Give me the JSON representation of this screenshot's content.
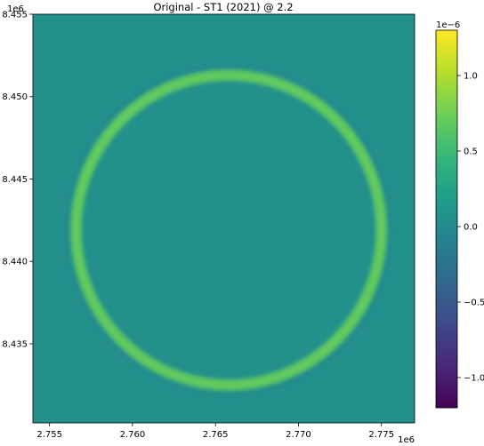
{
  "chart_data": {
    "type": "heatmap",
    "title": "Original - ST1 (2021) @ 2.2",
    "x_offset_label": "1e6",
    "y_offset_label": "1e6",
    "xlim": [
      2.754,
      2.777
    ],
    "ylim": [
      8.4302,
      8.455
    ],
    "x_ticks": [
      "2.755",
      "2.760",
      "2.765",
      "2.770",
      "2.775"
    ],
    "x_tick_values": [
      2.755,
      2.76,
      2.765,
      2.77,
      2.775
    ],
    "y_ticks": [
      "8.455",
      "8.450",
      "8.445",
      "8.440",
      "8.435"
    ],
    "y_tick_values": [
      8.455,
      8.45,
      8.445,
      8.44,
      8.435
    ],
    "colormap": "viridis",
    "grid": false,
    "colorbar": {
      "range": [
        -1.2,
        1.3
      ],
      "offset_label": "1e−6",
      "ticks": [
        "1.0",
        "0.5",
        "0.0",
        "−0.5",
        "−1.0"
      ],
      "tick_values": [
        1.0,
        0.5,
        0.0,
        -0.5,
        -1.0
      ]
    },
    "feature": {
      "shape": "ring",
      "center": [
        2.7658,
        8.4419
      ],
      "radius_x": 0.0092,
      "radius_y": 0.0094,
      "peak_value": 0.72,
      "background_value": 0.05
    }
  },
  "colors": {
    "viridis": [
      "#440154",
      "#482878",
      "#3e4989",
      "#31688e",
      "#26828e",
      "#1f9e89",
      "#35b779",
      "#6ece58",
      "#b5de2b",
      "#fde725"
    ]
  }
}
